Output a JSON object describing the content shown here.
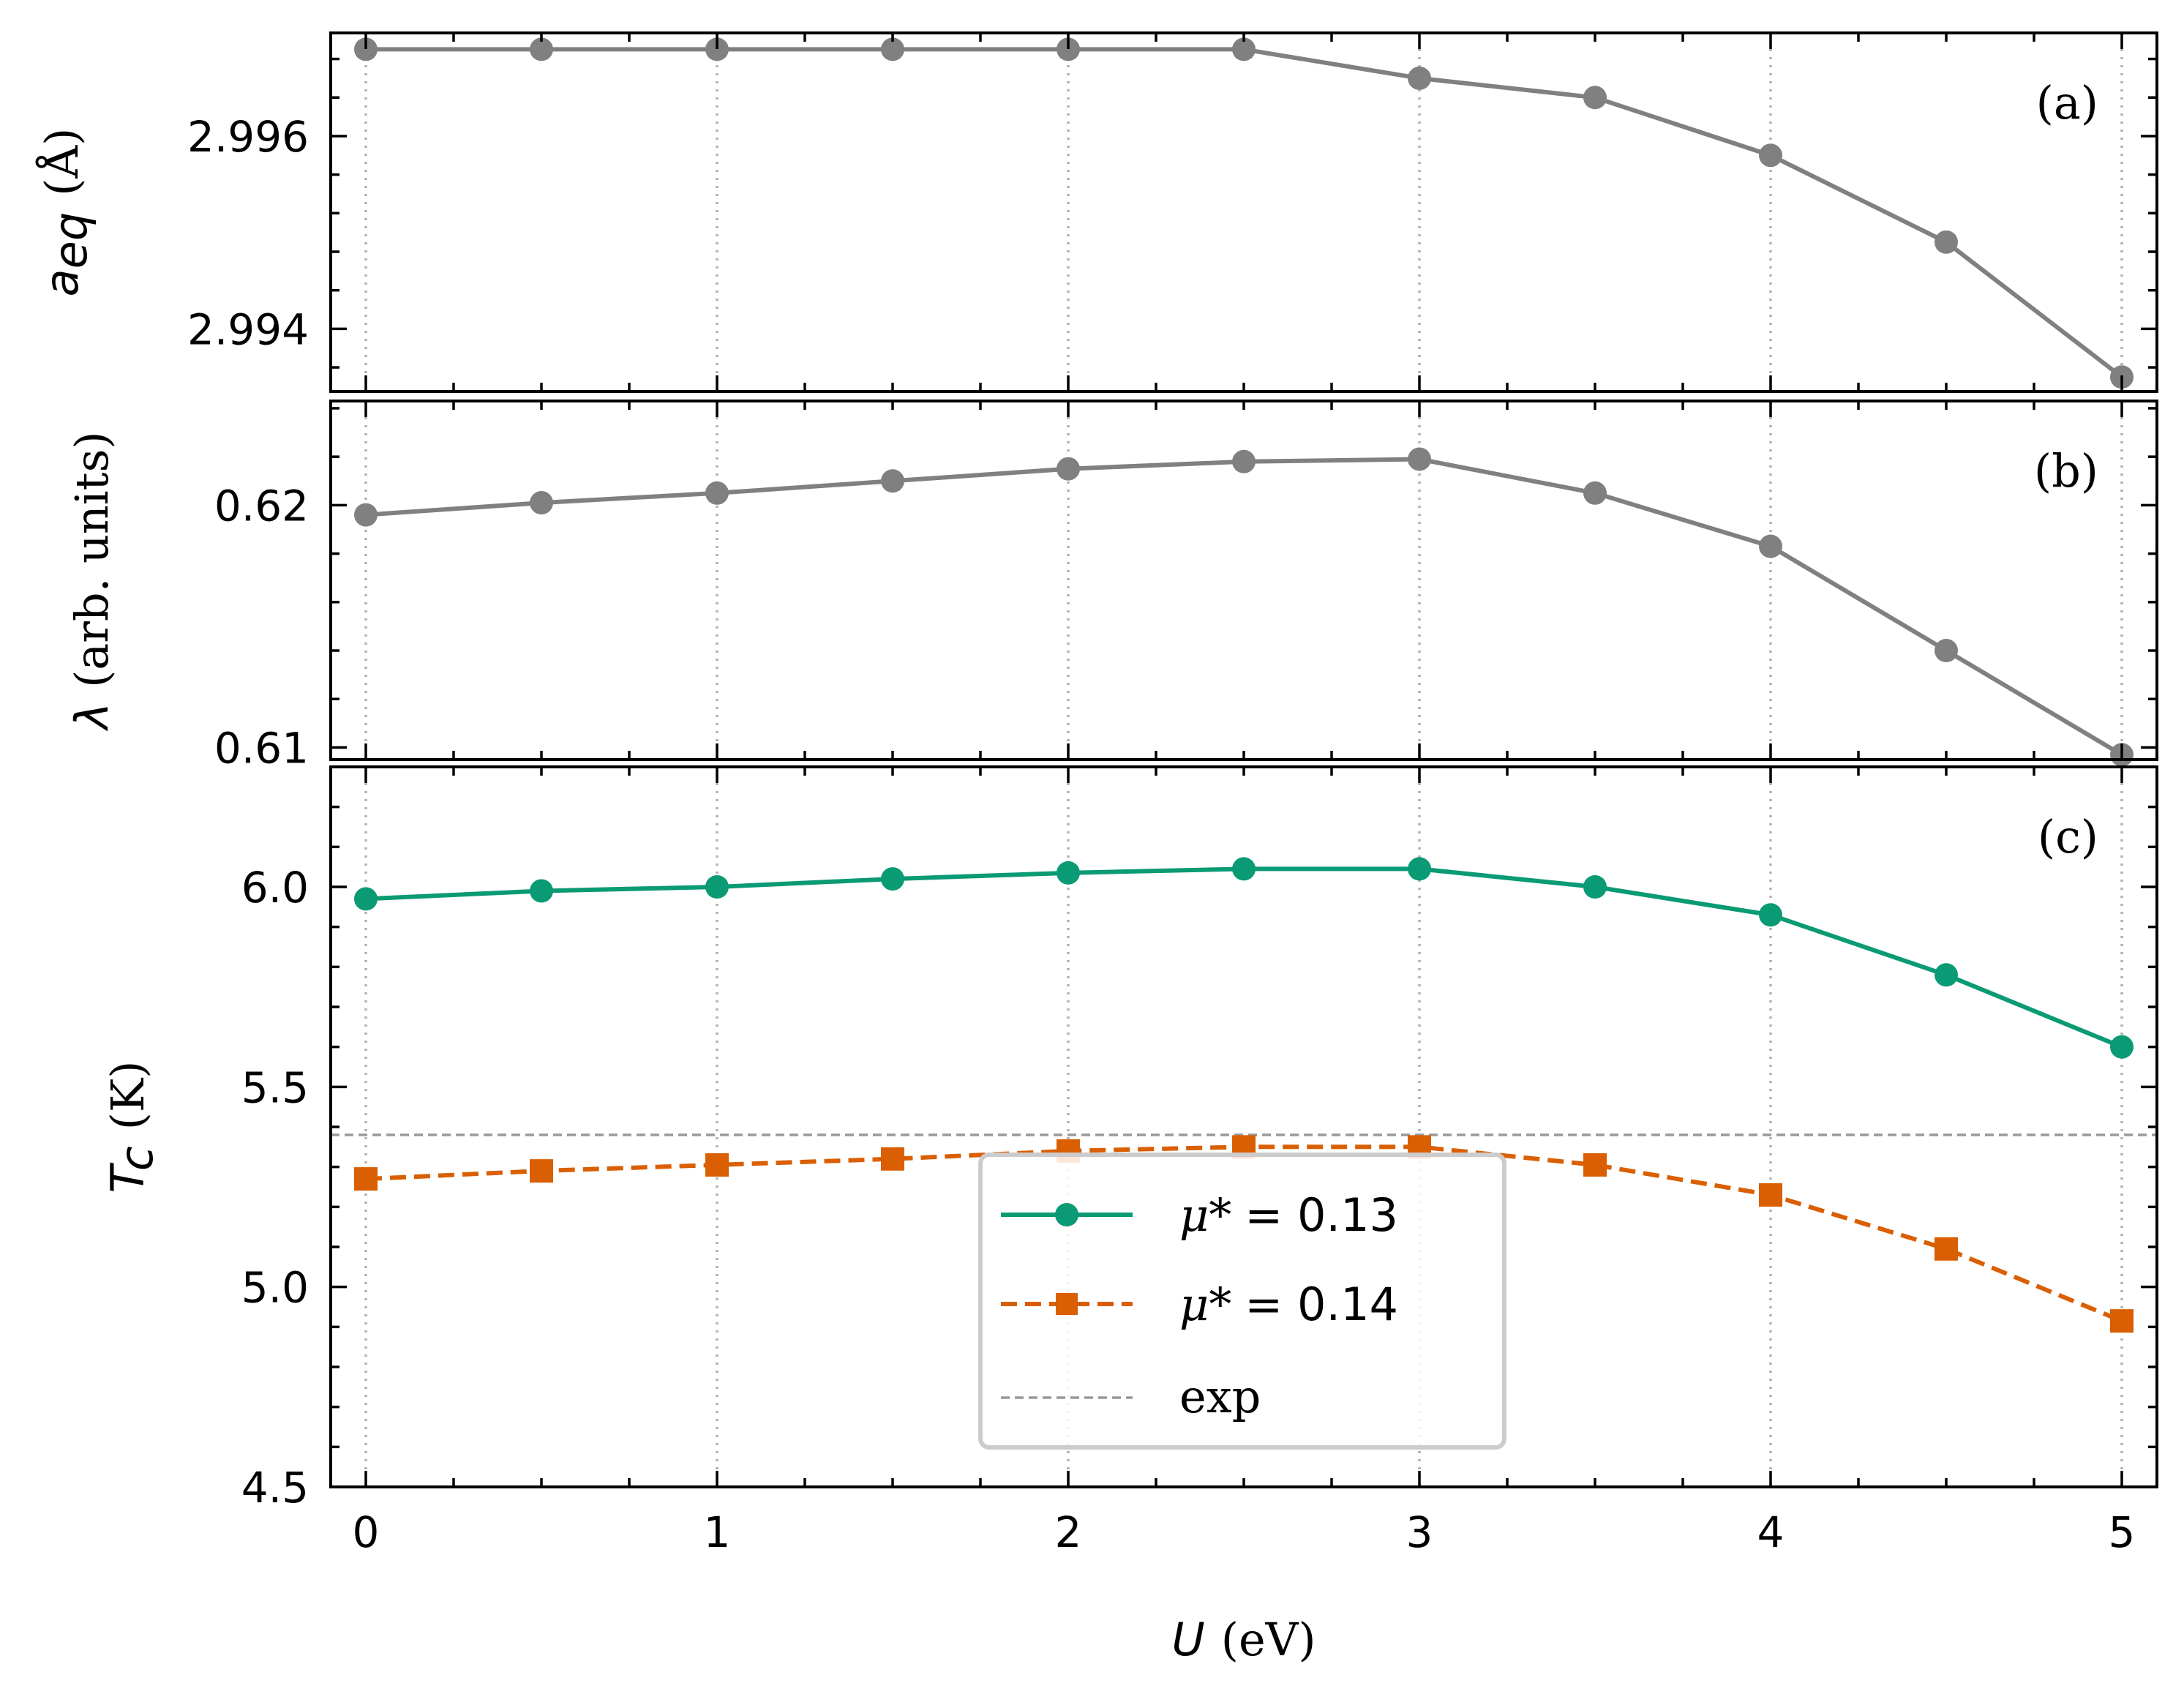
{
  "chart_data": [
    {
      "type": "line",
      "panel_label": "(a)",
      "ylabel_main": "a",
      "ylabel_sub": "eq",
      "ylabel_unit": "(Å)",
      "ylim": [
        2.99335,
        2.99707
      ],
      "yticks": [
        2.994,
        2.996
      ],
      "ytick_labels": [
        "2.994",
        "2.996"
      ],
      "grid": "vertical dotted",
      "series": [
        {
          "color": "#808080",
          "marker": "circle",
          "x": [
            0,
            0.5,
            1,
            1.5,
            2,
            2.5,
            3,
            3.5,
            4,
            4.5,
            5
          ],
          "y": [
            2.9969,
            2.9969,
            2.9969,
            2.9969,
            2.9969,
            2.9969,
            2.9966,
            2.9964,
            2.9958,
            2.9949,
            2.9935
          ]
        }
      ]
    },
    {
      "type": "line",
      "panel_label": "(b)",
      "ylabel_symbol": "λ",
      "ylabel_text": "(arb. units)",
      "ylim": [
        0.6095,
        0.6243
      ],
      "yticks": [
        0.61,
        0.62
      ],
      "ytick_labels": [
        "0.61",
        "0.62"
      ],
      "grid": "vertical dotted",
      "series": [
        {
          "color": "#808080",
          "marker": "circle",
          "x": [
            0,
            0.5,
            1,
            1.5,
            2,
            2.5,
            3,
            3.5,
            4,
            4.5,
            5
          ],
          "y": [
            0.6196,
            0.6201,
            0.6205,
            0.621,
            0.6215,
            0.6218,
            0.6219,
            0.6205,
            0.6183,
            0.614,
            0.6097
          ]
        }
      ]
    },
    {
      "type": "line",
      "panel_label": "(c)",
      "ylabel_main": "T",
      "ylabel_sub": "c",
      "ylabel_unit": "(K)",
      "xlabel_main": "U",
      "xlabel_unit": "(eV)",
      "xlim": [
        -0.1,
        5.1
      ],
      "xticks": [
        0,
        1,
        2,
        3,
        4,
        5
      ],
      "xtick_labels": [
        "0",
        "1",
        "2",
        "3",
        "4",
        "5"
      ],
      "ylim": [
        4.5,
        6.3
      ],
      "yticks": [
        4.5,
        5.0,
        5.5,
        6.0
      ],
      "ytick_labels": [
        "4.5",
        "5.0",
        "5.5",
        "6.0"
      ],
      "grid": "vertical dotted",
      "legend_position": "lower-center",
      "reference_line": {
        "y": 5.38,
        "color": "#999999",
        "style": "dashed",
        "label": "exp"
      },
      "series": [
        {
          "label_symbol": "μ*",
          "label_value": "= 0.13",
          "color": "#0a9a74",
          "marker": "circle",
          "line": "solid",
          "x": [
            0,
            0.5,
            1,
            1.5,
            2,
            2.5,
            3,
            3.5,
            4,
            4.5,
            5
          ],
          "y": [
            5.97,
            5.99,
            6.0,
            6.02,
            6.035,
            6.045,
            6.045,
            6.0,
            5.93,
            5.78,
            5.6
          ]
        },
        {
          "label_symbol": "μ*",
          "label_value": "= 0.14",
          "color": "#d95f02",
          "marker": "square",
          "line": "dashed",
          "x": [
            0,
            0.5,
            1,
            1.5,
            2,
            2.5,
            3,
            3.5,
            4,
            4.5,
            5
          ],
          "y": [
            5.27,
            5.29,
            5.305,
            5.32,
            5.34,
            5.35,
            5.35,
            5.305,
            5.23,
            5.095,
            4.915
          ]
        }
      ]
    }
  ]
}
